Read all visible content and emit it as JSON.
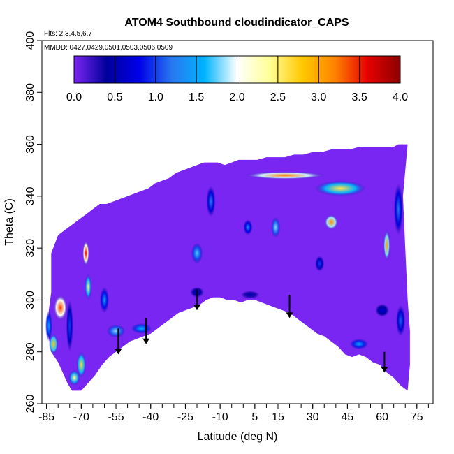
{
  "chart_data": {
    "type": "heatmap",
    "title": "ATOM4 Southbound cloudindicator_CAPS",
    "annotations": {
      "flights": "Flts: 2,3,4,5,6,7",
      "dates": "MMDD: 0427,0429,0501,0503,0506,0509"
    },
    "xlabel": "Latitude (deg N)",
    "ylabel": "Theta (C)",
    "xlim": [
      -87,
      82
    ],
    "ylim": [
      260,
      400
    ],
    "x_ticks": [
      -85,
      -70,
      -55,
      -40,
      -25,
      -10,
      5,
      15,
      30,
      45,
      60,
      75
    ],
    "y_ticks": [
      260,
      280,
      300,
      320,
      340,
      360,
      380,
      400
    ],
    "colorbar": {
      "min": 0,
      "max": 4,
      "ticks": [
        "0.0",
        "0.5",
        "1.0",
        "1.5",
        "2.0",
        "2.5",
        "3.0",
        "3.5",
        "4.0"
      ],
      "colors": [
        "#7a26f2",
        "#00009b",
        "#0000e8",
        "#2878f0",
        "#00b4ff",
        "#ffffff",
        "#ffff96",
        "#ffc800",
        "#ff8200",
        "#e60000",
        "#8c0000"
      ]
    },
    "background_value": 0.0,
    "coverage_top_boundary": [
      [
        -83,
        318
      ],
      [
        -80,
        325
      ],
      [
        -77,
        327
      ],
      [
        -74,
        329
      ],
      [
        -71,
        331
      ],
      [
        -68,
        333
      ],
      [
        -65,
        335
      ],
      [
        -62,
        337
      ],
      [
        -59,
        337
      ],
      [
        -56,
        338
      ],
      [
        -53,
        339
      ],
      [
        -50,
        340
      ],
      [
        -47,
        341
      ],
      [
        -44,
        342
      ],
      [
        -41,
        343
      ],
      [
        -38,
        345
      ],
      [
        -35,
        346
      ],
      [
        -32,
        347
      ],
      [
        -29,
        349
      ],
      [
        -26,
        350
      ],
      [
        -23,
        351
      ],
      [
        -20,
        352
      ],
      [
        -17,
        353
      ],
      [
        -14,
        353
      ],
      [
        -11,
        353
      ],
      [
        -8,
        352
      ],
      [
        -5,
        353
      ],
      [
        -2,
        354
      ],
      [
        2,
        354
      ],
      [
        6,
        354
      ],
      [
        10,
        355
      ],
      [
        14,
        355
      ],
      [
        18,
        355
      ],
      [
        22,
        356
      ],
      [
        26,
        356
      ],
      [
        30,
        357
      ],
      [
        34,
        357
      ],
      [
        38,
        358
      ],
      [
        42,
        358
      ],
      [
        46,
        358
      ],
      [
        50,
        359
      ],
      [
        54,
        359
      ],
      [
        58,
        359
      ],
      [
        62,
        359
      ],
      [
        65,
        359
      ],
      [
        67,
        360
      ],
      [
        69,
        360
      ],
      [
        71,
        360
      ]
    ],
    "coverage_bottom_boundary": [
      [
        -83,
        303
      ],
      [
        -84,
        296
      ],
      [
        -84.5,
        288
      ],
      [
        -83,
        280
      ],
      [
        -80,
        276
      ],
      [
        -78,
        272
      ],
      [
        -76,
        268
      ],
      [
        -74,
        265
      ],
      [
        -70,
        265
      ],
      [
        -67,
        268
      ],
      [
        -64,
        271
      ],
      [
        -61,
        275
      ],
      [
        -58,
        278
      ],
      [
        -55,
        280
      ],
      [
        -52,
        282
      ],
      [
        -49,
        284
      ],
      [
        -46,
        285
      ],
      [
        -43,
        286
      ],
      [
        -40,
        287
      ],
      [
        -37,
        289
      ],
      [
        -34,
        291
      ],
      [
        -31,
        293
      ],
      [
        -28,
        295
      ],
      [
        -25,
        296
      ],
      [
        -22,
        297
      ],
      [
        -19,
        298
      ],
      [
        -16,
        300
      ],
      [
        -13,
        301
      ],
      [
        -10,
        301
      ],
      [
        -7,
        300
      ],
      [
        -4,
        300
      ],
      [
        -1,
        299
      ],
      [
        2,
        300
      ],
      [
        5,
        300
      ],
      [
        8,
        299
      ],
      [
        11,
        298
      ],
      [
        14,
        297
      ],
      [
        17,
        296
      ],
      [
        20,
        295
      ],
      [
        23,
        293
      ],
      [
        26,
        291
      ],
      [
        29,
        289
      ],
      [
        32,
        287
      ],
      [
        35,
        286
      ],
      [
        38,
        284
      ],
      [
        41,
        282
      ],
      [
        44,
        279
      ],
      [
        47,
        278
      ],
      [
        50,
        279
      ],
      [
        53,
        278
      ],
      [
        56,
        276
      ],
      [
        59,
        275
      ],
      [
        62,
        272
      ],
      [
        65,
        270
      ],
      [
        68,
        267
      ],
      [
        71,
        265
      ],
      [
        72,
        275
      ],
      [
        72,
        288
      ],
      [
        71,
        300
      ],
      [
        70,
        320
      ],
      [
        69,
        340
      ],
      [
        71,
        360
      ]
    ],
    "cloud_features": [
      {
        "x": -79,
        "y": 297,
        "w": 6,
        "h": 10,
        "v": 3.4
      },
      {
        "x": -84,
        "y": 290,
        "w": 3,
        "h": 12,
        "v": 1.5
      },
      {
        "x": -75,
        "y": 290,
        "w": 3,
        "h": 20,
        "v": 1.0
      },
      {
        "x": -82,
        "y": 283,
        "w": 4,
        "h": 8,
        "v": 2.8
      },
      {
        "x": -70,
        "y": 275,
        "w": 4,
        "h": 10,
        "v": 2.7
      },
      {
        "x": -73,
        "y": 270,
        "w": 5,
        "h": 6,
        "v": 2.4
      },
      {
        "x": -68,
        "y": 318,
        "w": 3,
        "h": 10,
        "v": 3.6
      },
      {
        "x": -67,
        "y": 305,
        "w": 3,
        "h": 10,
        "v": 2.5
      },
      {
        "x": -60,
        "y": 300,
        "w": 4,
        "h": 10,
        "v": 1.4
      },
      {
        "x": -55,
        "y": 288,
        "w": 8,
        "h": 5,
        "v": 1.8
      },
      {
        "x": -44,
        "y": 289,
        "w": 9,
        "h": 4,
        "v": 1.6
      },
      {
        "x": -20,
        "y": 318,
        "w": 5,
        "h": 8,
        "v": 1.7
      },
      {
        "x": -20,
        "y": 303,
        "w": 6,
        "h": 4,
        "v": 0.6
      },
      {
        "x": -14,
        "y": 338,
        "w": 4,
        "h": 12,
        "v": 1.2
      },
      {
        "x": 18,
        "y": 348,
        "w": 35,
        "h": 3,
        "v": 3.2
      },
      {
        "x": 2,
        "y": 328,
        "w": 4,
        "h": 6,
        "v": 1.3
      },
      {
        "x": 14,
        "y": 328,
        "w": 4,
        "h": 8,
        "v": 1.8
      },
      {
        "x": 38,
        "y": 330,
        "w": 6,
        "h": 6,
        "v": 3.1
      },
      {
        "x": 42,
        "y": 343,
        "w": 22,
        "h": 6,
        "v": 2.6
      },
      {
        "x": 62,
        "y": 321,
        "w": 3,
        "h": 12,
        "v": 3.0
      },
      {
        "x": 67,
        "y": 335,
        "w": 4,
        "h": 20,
        "v": 1.2
      },
      {
        "x": 33,
        "y": 314,
        "w": 4,
        "h": 6,
        "v": 1.0
      },
      {
        "x": 60,
        "y": 296,
        "w": 6,
        "h": 5,
        "v": 0.7
      },
      {
        "x": 68,
        "y": 292,
        "w": 4,
        "h": 12,
        "v": 1.1
      },
      {
        "x": 50,
        "y": 283,
        "w": 8,
        "h": 4,
        "v": 1.5
      },
      {
        "x": 3,
        "y": 302,
        "w": 8,
        "h": 3,
        "v": 0.5
      }
    ],
    "vertical_arrows": [
      {
        "x": -54,
        "y_start": 289,
        "y_end": 279
      },
      {
        "x": -42,
        "y_start": 293,
        "y_end": 283
      },
      {
        "x": -20,
        "y_start": 304,
        "y_end": 296
      },
      {
        "x": 20,
        "y_start": 302,
        "y_end": 293
      },
      {
        "x": 61,
        "y_start": 280,
        "y_end": 272
      }
    ],
    "grid": false,
    "legend": "top colorbar"
  }
}
